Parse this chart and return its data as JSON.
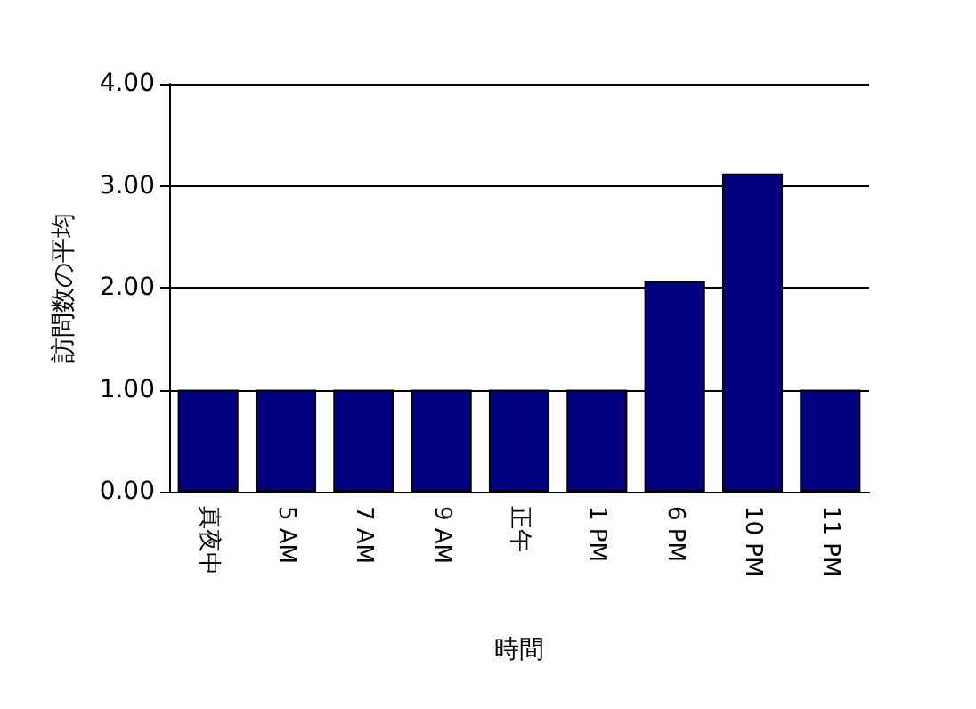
{
  "chart_data": {
    "type": "bar",
    "xlabel": "時間",
    "ylabel": "訪問数の平均",
    "categories": [
      "真夜中",
      "5 AM",
      "7 AM",
      "9 AM",
      "正午",
      "1 PM",
      "6 PM",
      "10 PM",
      "11 PM"
    ],
    "values": [
      1,
      1,
      1,
      1,
      1,
      1,
      2.07,
      3.12,
      1
    ],
    "color": "#000080",
    "ylim": [
      0,
      4
    ],
    "yticks": [
      {
        "value": 0,
        "label": "0.00"
      },
      {
        "value": 1,
        "label": "1.00"
      },
      {
        "value": 2,
        "label": "2.00"
      },
      {
        "value": 3,
        "label": "3.00"
      },
      {
        "value": 4,
        "label": "4.00"
      }
    ],
    "grid": "y"
  }
}
